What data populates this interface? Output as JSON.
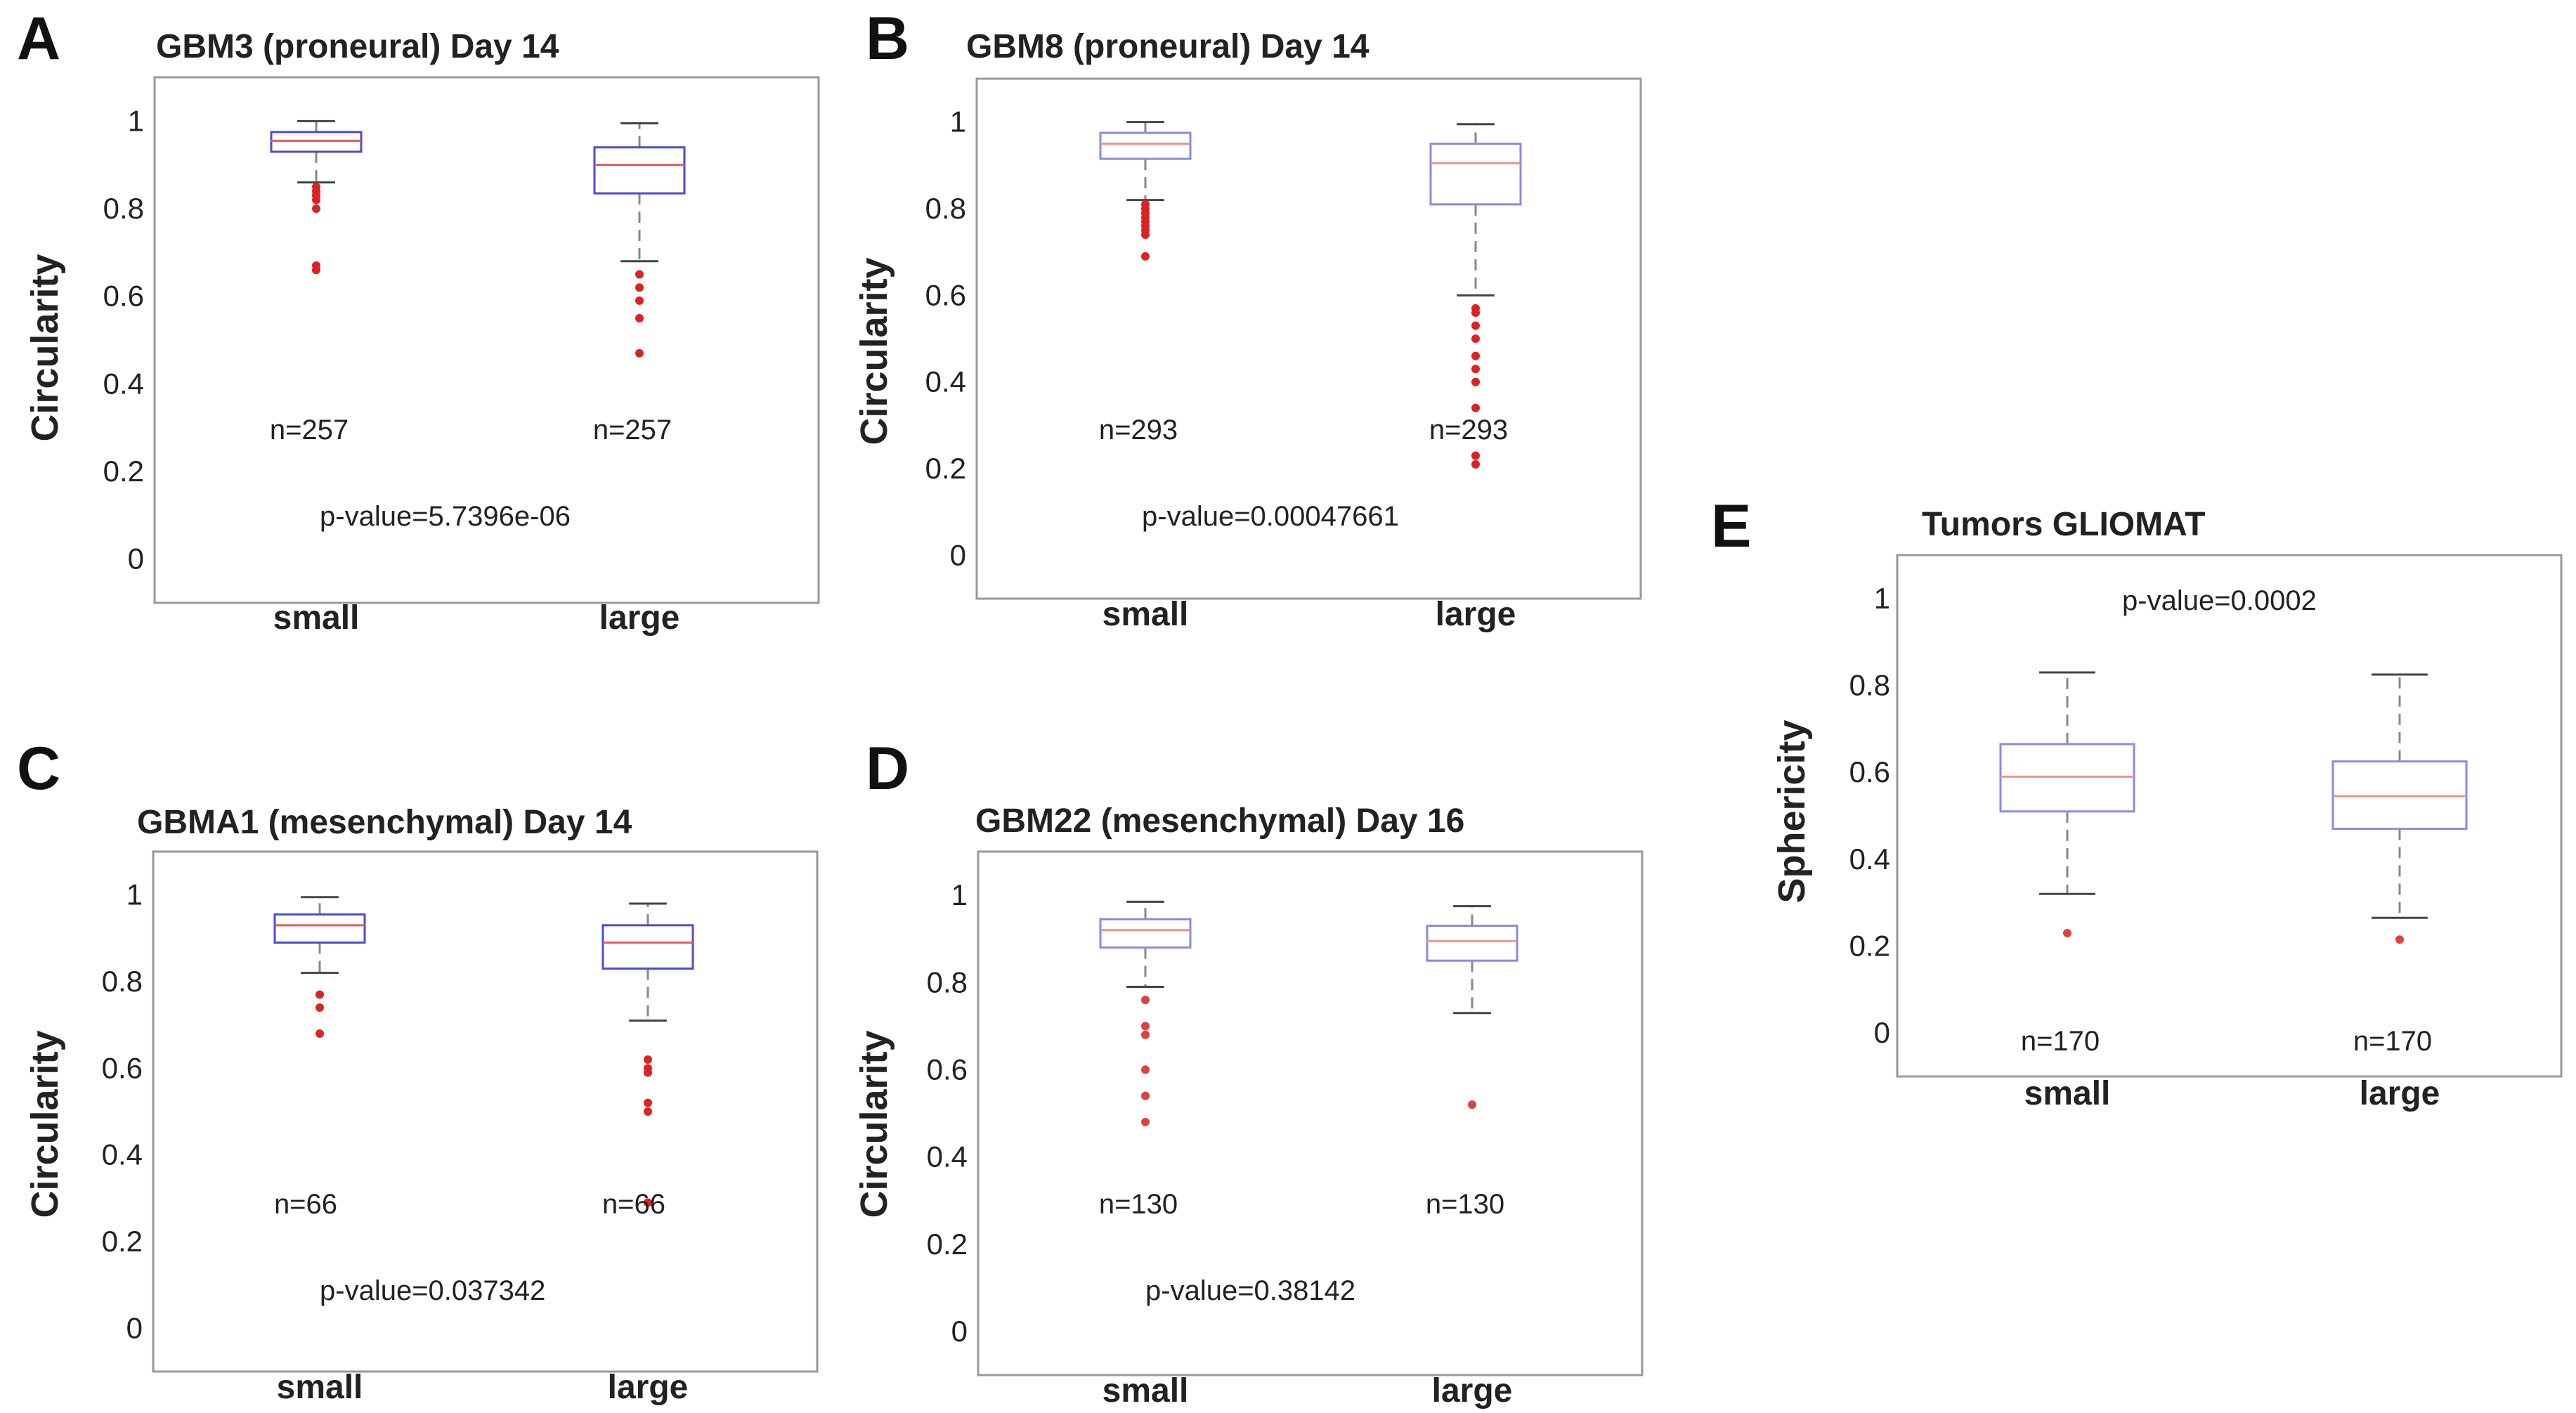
{
  "chart_data": [
    {
      "panel": "A",
      "type": "box",
      "title": "GBM3 (proneural) Day 14",
      "ylabel": "Circularity",
      "ylim": [
        -0.1,
        1.1
      ],
      "yticks": [
        0,
        0.2,
        0.4,
        0.6,
        0.8,
        1
      ],
      "ytick_labels": [
        "0",
        "0.2",
        "0.4",
        "0.6",
        "0.8",
        "1"
      ],
      "categories": [
        "small",
        "large"
      ],
      "box_color": "#4b4bd6",
      "median_color": "#e85a5a",
      "outlier_color": "#dd2222",
      "boxes": [
        {
          "category": "small",
          "whisker_low": 0.86,
          "q1": 0.93,
          "median": 0.955,
          "q3": 0.975,
          "whisker_high": 1.0,
          "outliers": [
            0.85,
            0.84,
            0.83,
            0.82,
            0.8,
            0.67,
            0.66
          ],
          "n_label": "n=257"
        },
        {
          "category": "large",
          "whisker_low": 0.68,
          "q1": 0.835,
          "median": 0.9,
          "q3": 0.94,
          "whisker_high": 0.995,
          "outliers": [
            0.65,
            0.62,
            0.59,
            0.55,
            0.47
          ],
          "n_label": "n=257"
        }
      ],
      "pvalue": "p-value=5.7396e-06",
      "pvalue_pos": {
        "x": 0.5,
        "y": 0.07
      }
    },
    {
      "panel": "B",
      "type": "box",
      "title": "GBM8 (proneural) Day 14",
      "ylabel": "Circularity",
      "ylim": [
        -0.1,
        1.1
      ],
      "yticks": [
        0,
        0.2,
        0.4,
        0.6,
        0.8,
        1
      ],
      "ytick_labels": [
        "0",
        "0.2",
        "0.4",
        "0.6",
        "0.8",
        "1"
      ],
      "categories": [
        "small",
        "large"
      ],
      "box_color": "#8a8ae6",
      "median_color": "#f09090",
      "outlier_color": "#dd2222",
      "boxes": [
        {
          "category": "small",
          "whisker_low": 0.82,
          "q1": 0.915,
          "median": 0.95,
          "q3": 0.975,
          "whisker_high": 1.0,
          "outliers": [
            0.81,
            0.8,
            0.79,
            0.78,
            0.77,
            0.76,
            0.75,
            0.74,
            0.69
          ],
          "n_label": "n=293"
        },
        {
          "category": "large",
          "whisker_low": 0.6,
          "q1": 0.81,
          "median": 0.905,
          "q3": 0.95,
          "whisker_high": 0.995,
          "outliers": [
            0.57,
            0.56,
            0.53,
            0.5,
            0.46,
            0.43,
            0.4,
            0.34,
            0.23,
            0.21
          ],
          "n_label": "n=293"
        }
      ],
      "pvalue": "p-value=0.00047661",
      "pvalue_pos": {
        "x": 0.5,
        "y": 0.08
      }
    },
    {
      "panel": "C",
      "type": "box",
      "title": "GBMA1 (mesenchymal) Day 14",
      "ylabel": "Circularity",
      "ylim": [
        -0.1,
        1.1
      ],
      "yticks": [
        0,
        0.2,
        0.4,
        0.6,
        0.8,
        1
      ],
      "ytick_labels": [
        "0",
        "0.2",
        "0.4",
        "0.6",
        "0.8",
        "1"
      ],
      "categories": [
        "small",
        "large"
      ],
      "box_color": "#4b4bd6",
      "median_color": "#e85a5a",
      "outlier_color": "#dd2222",
      "boxes": [
        {
          "category": "small",
          "whisker_low": 0.82,
          "q1": 0.89,
          "median": 0.93,
          "q3": 0.955,
          "whisker_high": 0.995,
          "outliers": [
            0.77,
            0.74,
            0.68
          ],
          "n_label": "n=66"
        },
        {
          "category": "large",
          "whisker_low": 0.71,
          "q1": 0.83,
          "median": 0.89,
          "q3": 0.93,
          "whisker_high": 0.98,
          "outliers": [
            0.62,
            0.6,
            0.59,
            0.52,
            0.5,
            0.29
          ],
          "n_label": "n=66"
        }
      ],
      "pvalue": "p-value=0.037342",
      "pvalue_pos": {
        "x": 0.5,
        "y": 0.09
      }
    },
    {
      "panel": "D",
      "type": "box",
      "title": "GBM22 (mesenchymal) Day 16",
      "ylabel": "Circularity",
      "ylim": [
        -0.1,
        1.1
      ],
      "yticks": [
        0,
        0.2,
        0.4,
        0.6,
        0.8,
        1
      ],
      "ytick_labels": [
        "0",
        "0.2",
        "0.4",
        "0.6",
        "0.8",
        "1"
      ],
      "categories": [
        "small",
        "large"
      ],
      "box_color": "#8a8ae6",
      "median_color": "#f09090",
      "outlier_color": "#e04040",
      "boxes": [
        {
          "category": "small",
          "whisker_low": 0.79,
          "q1": 0.88,
          "median": 0.92,
          "q3": 0.945,
          "whisker_high": 0.985,
          "outliers": [
            0.76,
            0.7,
            0.68,
            0.6,
            0.54,
            0.48
          ],
          "n_label": "n=130"
        },
        {
          "category": "large",
          "whisker_low": 0.73,
          "q1": 0.85,
          "median": 0.895,
          "q3": 0.93,
          "whisker_high": 0.975,
          "outliers": [
            0.52
          ],
          "n_label": "n=130"
        }
      ],
      "pvalue": "p-value=0.38142",
      "pvalue_pos": {
        "x": 0.5,
        "y": 0.09
      }
    },
    {
      "panel": "E",
      "type": "box",
      "title": "Tumors GLIOMAT",
      "ylabel": "Sphericity",
      "ylim": [
        -0.1,
        1.1
      ],
      "yticks": [
        0,
        0.2,
        0.4,
        0.6,
        0.8,
        1
      ],
      "ytick_labels": [
        "0",
        "0.2",
        "0.4",
        "0.6",
        "0.8",
        "1"
      ],
      "categories": [
        "small",
        "large"
      ],
      "box_color": "#8a8ae6",
      "median_color": "#f09090",
      "outlier_color": "#e04040",
      "boxes": [
        {
          "category": "small",
          "whisker_low": 0.32,
          "q1": 0.51,
          "median": 0.59,
          "q3": 0.665,
          "whisker_high": 0.83,
          "outliers": [
            0.23
          ],
          "n_label": "n=170"
        },
        {
          "category": "large",
          "whisker_low": 0.265,
          "q1": 0.47,
          "median": 0.545,
          "q3": 0.625,
          "whisker_high": 0.825,
          "outliers": [
            0.215
          ],
          "n_label": "n=170"
        }
      ],
      "pvalue": "p-value=0.0002",
      "pvalue_pos": {
        "x": 0.5,
        "y": 1.0
      }
    }
  ]
}
